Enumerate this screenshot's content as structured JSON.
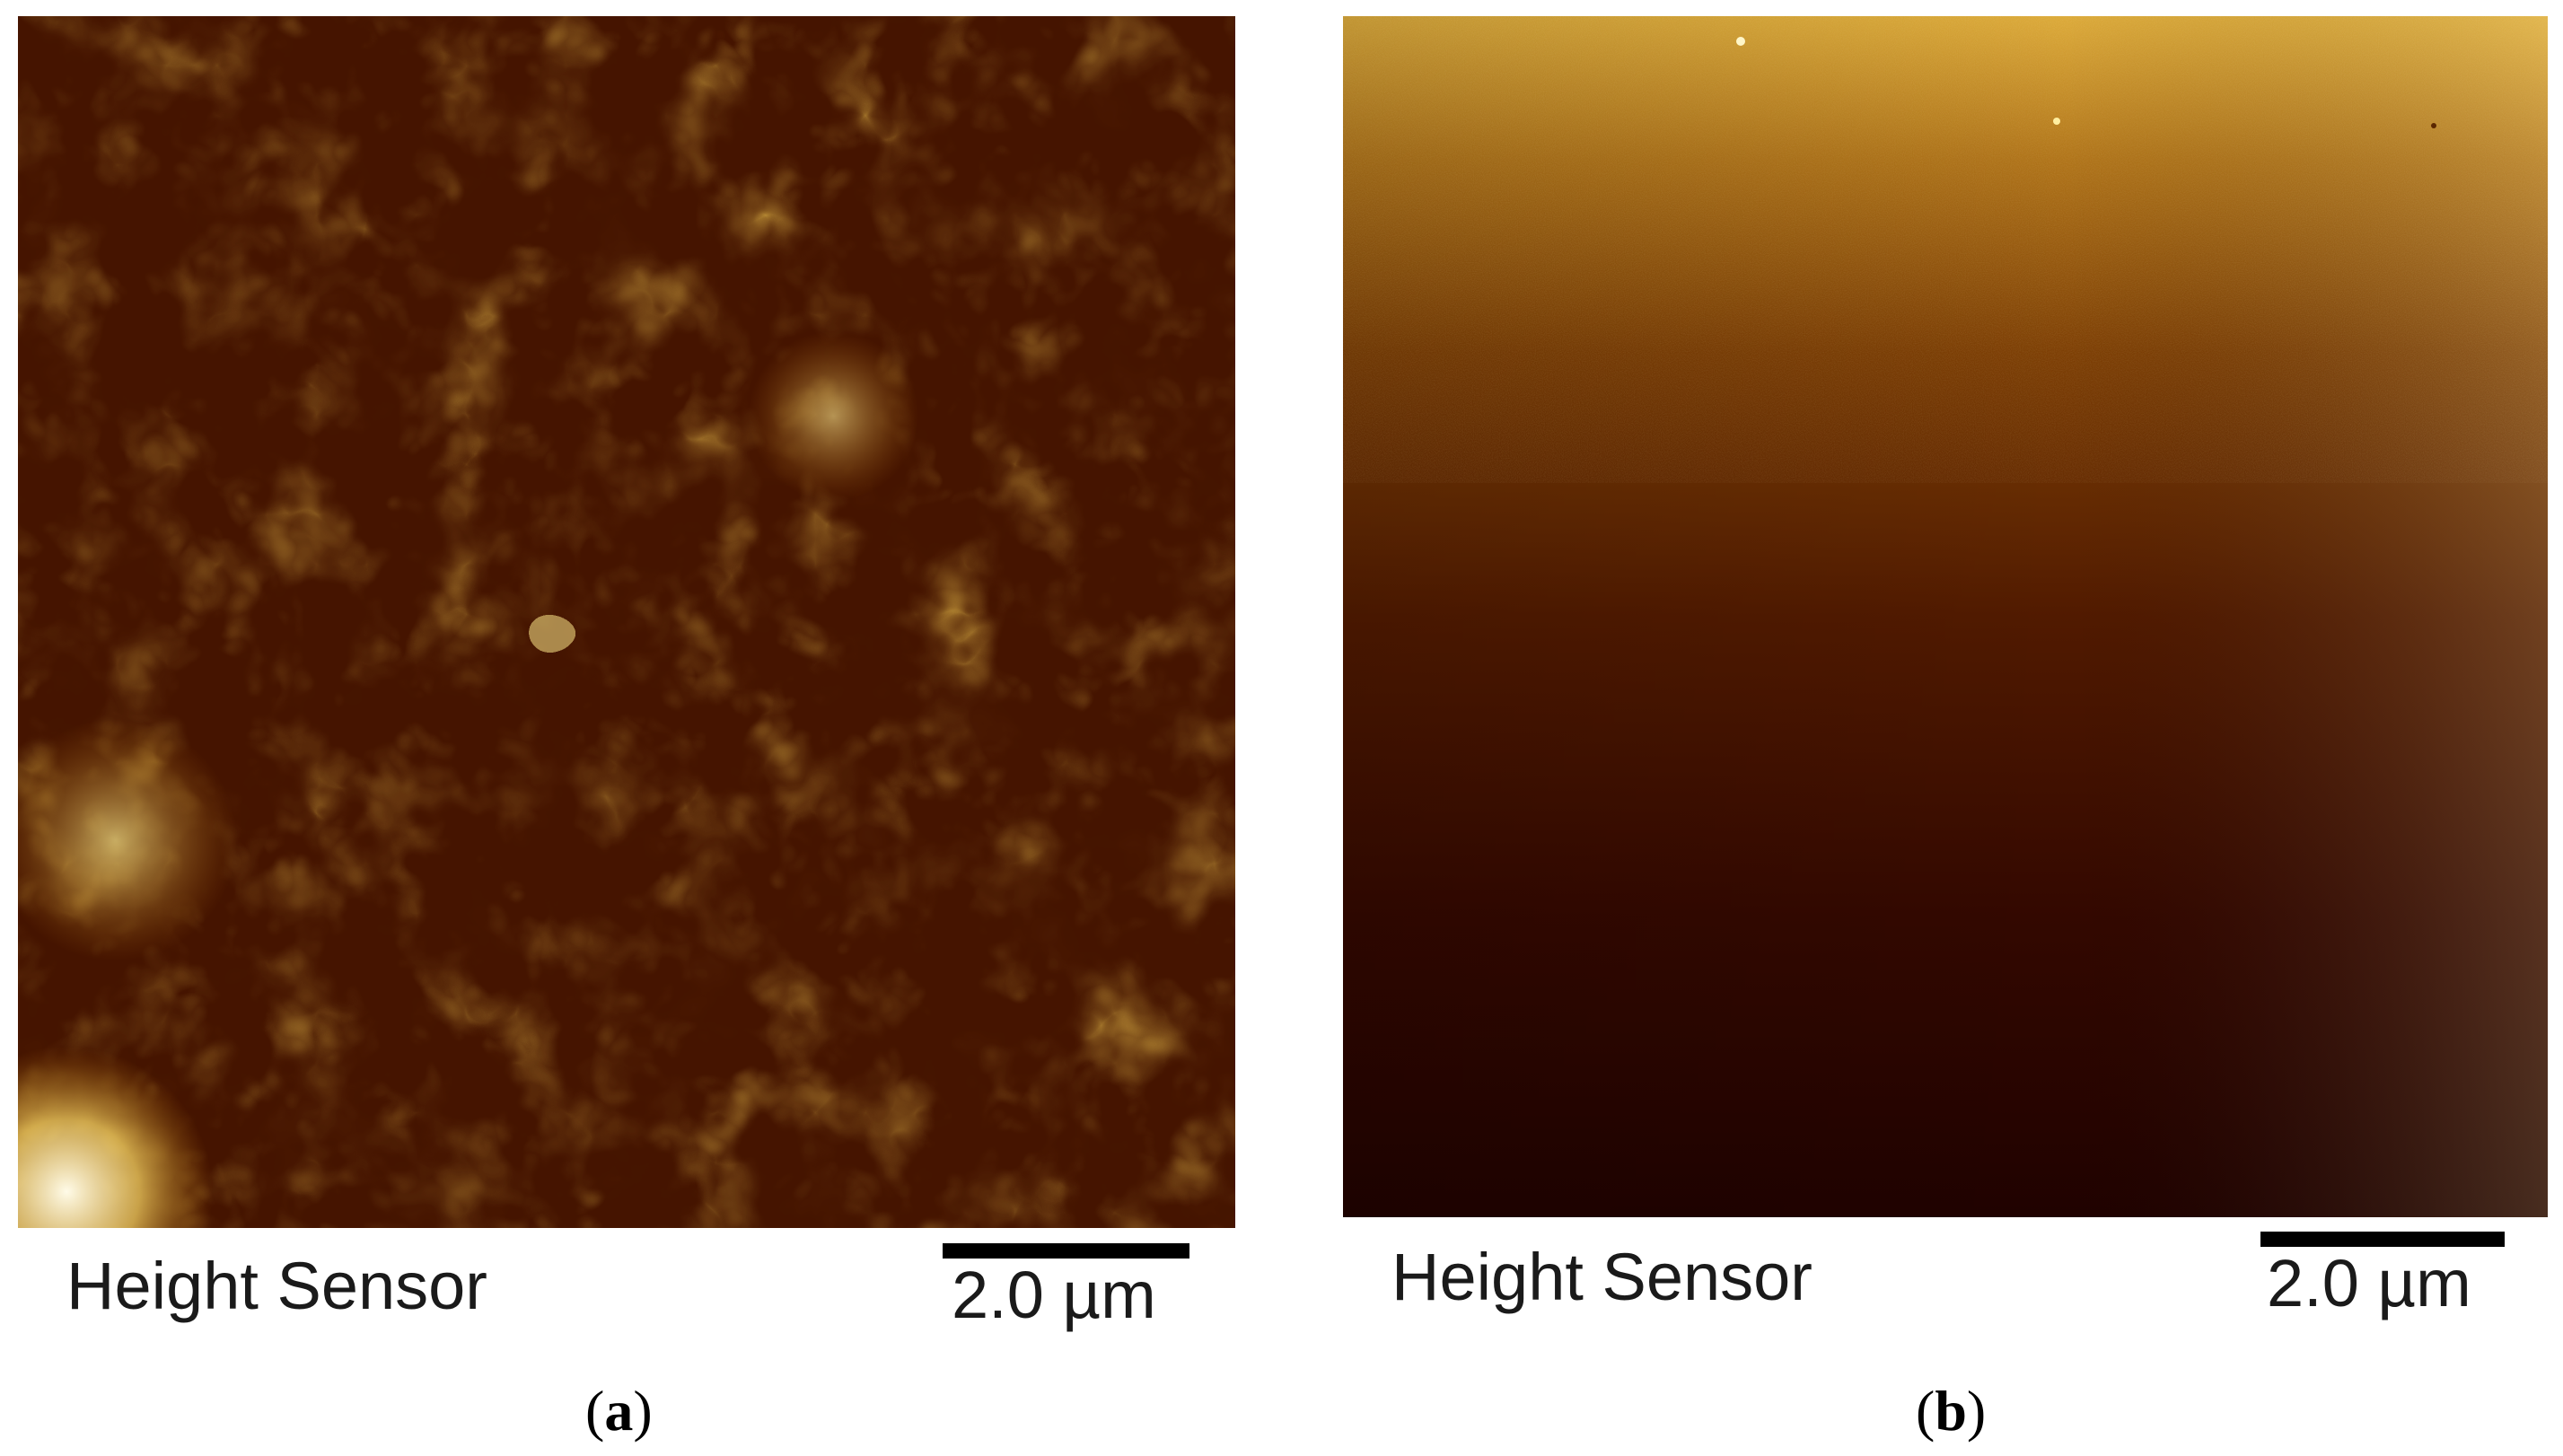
{
  "panels": [
    {
      "id": "a",
      "channel_label": "Height Sensor",
      "scale_bar_label": "2.0 µm",
      "caption_letter": "a",
      "colormap": [
        "#1e0500",
        "#5a1e00",
        "#a05a08",
        "#d89a20",
        "#f8e070",
        "#fffbe0"
      ]
    },
    {
      "id": "b",
      "channel_label": "Height Sensor",
      "scale_bar_label": "2.0 µm",
      "caption_letter": "b",
      "colormap": [
        "#1a0200",
        "#3e0b00",
        "#6e2a00",
        "#9a5a05",
        "#c88f1d",
        "#e8c04a"
      ]
    }
  ]
}
